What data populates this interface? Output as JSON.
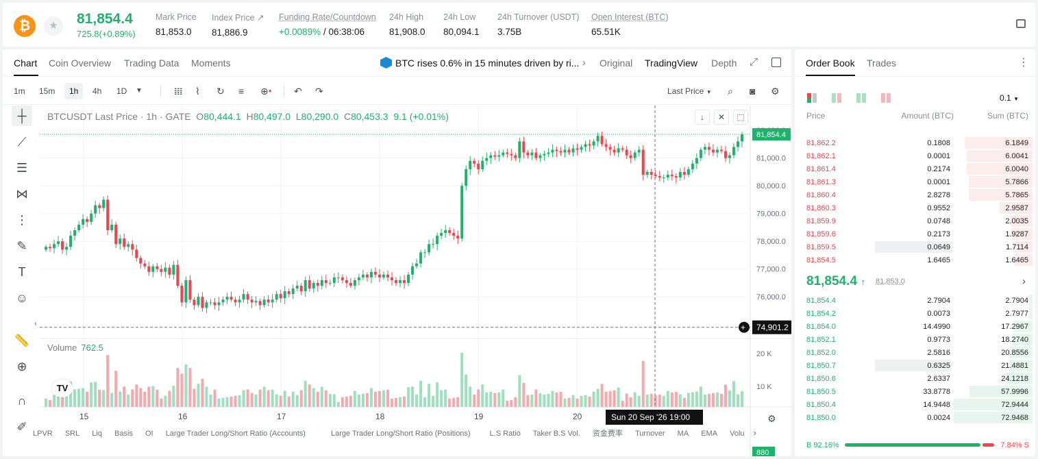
{
  "ticker": {
    "last_price": "81,854.4",
    "change": "725.8(+0.89%)",
    "stats": [
      {
        "label": "Mark Price",
        "value": "81,853.0",
        "color": "default"
      },
      {
        "label": "Index Price ↗",
        "value": "81,886.9",
        "color": "default"
      },
      {
        "label": "Funding Rate/Countdown",
        "value_green": "+0.0089%",
        "value": " / 06:38:06",
        "color": "mixed"
      },
      {
        "label": "24h High",
        "value": "81,908.0",
        "color": "default"
      },
      {
        "label": "24h Low",
        "value": "80,094.1",
        "color": "default"
      },
      {
        "label": "24h Turnover (USDT)",
        "value": "3.75B",
        "color": "default"
      },
      {
        "label": "Open Interest (BTC)",
        "value": "65.51K",
        "color": "default"
      }
    ],
    "logo_icon": "bitcoin-icon"
  },
  "chart_tabs": {
    "items": [
      "Chart",
      "Coin Overview",
      "Trading Data",
      "Moments"
    ],
    "active": "Chart",
    "news": "BTC rises 0.6% in 15 minutes driven by ri...",
    "view_modes": [
      "Original",
      "TradingView",
      "Depth"
    ],
    "active_view": "TradingView"
  },
  "toolbar": {
    "timeframes": [
      "1m",
      "15m",
      "1h",
      "4h",
      "1D"
    ],
    "active_timeframe": "1h",
    "price_type": "Last Price"
  },
  "chart_legend": {
    "symbol": "BTCUSDT Last Price · 1h · GATE",
    "o": "80,444.1",
    "h": "80,497.0",
    "l": "80,290.0",
    "c": "80,453.3",
    "chg": "9.1 (+0.01%)",
    "volume_label": "Volume",
    "volume_value": "762.5"
  },
  "chart_data": {
    "type": "candlestick",
    "x_labels": [
      "15",
      "16",
      "17",
      "18",
      "19",
      "20"
    ],
    "y_ticks": [
      "82,000.0",
      "81,000.0",
      "80,000.0",
      "79,000.0",
      "78,000.0",
      "77,000.0",
      "76,000.0"
    ],
    "last_price_tag": "81,854.4",
    "crosshair_price": "74,901.2",
    "crosshair_time": "Sun 20 Sep '26   19:00",
    "volume_ticks": [
      "20 K",
      "10 K"
    ],
    "volume_tag": "880",
    "series_close": [
      77800,
      77750,
      77900,
      78000,
      77700,
      77800,
      78200,
      78400,
      78600,
      78800,
      78700,
      79000,
      79300,
      79200,
      79500,
      78400,
      78600,
      77900,
      78100,
      77800,
      77900,
      77700,
      77400,
      77200,
      77100,
      76900,
      77100,
      77000,
      76900,
      77050,
      76800,
      77150,
      76400,
      75800,
      76600,
      75900,
      75700,
      76000,
      75600,
      75800,
      75800,
      75700,
      75800,
      75900,
      76000,
      75900,
      75800,
      75900,
      76100,
      75900,
      75800,
      75850,
      75700,
      75900,
      75800,
      75900,
      76100,
      75950,
      76200,
      76100,
      76300,
      76400,
      76200,
      76600,
      76300,
      76500,
      76400,
      76600,
      76500,
      76500,
      76700,
      76700,
      76600,
      76500,
      76400,
      76600,
      76700,
      76800,
      76700,
      76900,
      76800,
      76700,
      76800,
      76700,
      76600,
      76500,
      76600,
      76500,
      76800,
      77100,
      77200,
      77600,
      77600,
      77900,
      77900,
      78200,
      78300,
      78400,
      78300,
      78200,
      78100,
      80000,
      80600,
      80900,
      80800,
      80600,
      80900,
      81000,
      81100,
      81050,
      81100,
      81200,
      81150,
      81100,
      81000,
      81600,
      81200,
      81100,
      81200,
      81000,
      81100,
      81150,
      81200,
      81300,
      81250,
      81200,
      81300,
      81200,
      81350,
      81300,
      81400,
      81500,
      81450,
      81600,
      81800,
      81500,
      81400,
      81300,
      81200,
      81350,
      81300,
      81100,
      81000,
      81200,
      81300,
      80400,
      80500,
      80400,
      80350,
      80300,
      80300,
      80400,
      80350,
      80300,
      80500,
      80400,
      80600,
      80800,
      81000,
      81300,
      81400,
      81300,
      81200,
      81300,
      81250,
      81000,
      81100,
      81400,
      81600,
      81854
    ],
    "ylim": [
      74500,
      82400
    ]
  },
  "drawing_tools": [
    "crosshair-icon",
    "trendline-icon",
    "fib-icon",
    "pattern-icon",
    "projection-icon",
    "brush-icon",
    "text-icon",
    "emoji-icon",
    "ruler-icon",
    "zoom-in-icon",
    "magnet-icon",
    "pencil-icon"
  ],
  "indicators": [
    "LPVR",
    "SRL",
    "Liq",
    "Basis",
    "OI",
    "Large Trader Long/Short Ratio (Accounts)",
    "Large Trader Long/Short Ratio (Positions)",
    "L.S Ratio",
    "Taker B.S Vol.",
    "资金费率",
    "Turnover",
    "MA",
    "EMA",
    "Volu"
  ],
  "order_book": {
    "tabs": [
      "Order Book",
      "Trades"
    ],
    "step": "0.1",
    "headers": {
      "price": "Price",
      "amount": "Amount (BTC)",
      "sum": "Sum (BTC)"
    },
    "asks": [
      {
        "price": "81,862.2",
        "amount": "0.1808",
        "sum": "6.1849",
        "depth": 0.85
      },
      {
        "price": "81,862.1",
        "amount": "0.0001",
        "sum": "6.0041",
        "depth": 0.83
      },
      {
        "price": "81,861.4",
        "amount": "0.2174",
        "sum": "6.0040",
        "depth": 0.83
      },
      {
        "price": "81,861.3",
        "amount": "0.0001",
        "sum": "5.7866",
        "depth": 0.8
      },
      {
        "price": "81,860.4",
        "amount": "2.8278",
        "sum": "5.7865",
        "depth": 0.8
      },
      {
        "price": "81,860.3",
        "amount": "0.9552",
        "sum": "2.9587",
        "depth": 0.41
      },
      {
        "price": "81,859.9",
        "amount": "0.0748",
        "sum": "2.0035",
        "depth": 0.28
      },
      {
        "price": "81,859.6",
        "amount": "0.2173",
        "sum": "1.9287",
        "depth": 0.27
      },
      {
        "price": "81,859.5",
        "amount": "0.0649",
        "sum": "1.7114",
        "depth": 0.24
      },
      {
        "price": "81,854.5",
        "amount": "1.6465",
        "sum": "1.6465",
        "depth": 0.23
      }
    ],
    "mid_price": "81,854.4",
    "mark_price": "81,853.0",
    "bids": [
      {
        "price": "81,854.4",
        "amount": "2.7904",
        "sum": "2.7904",
        "depth": 0.04
      },
      {
        "price": "81,854.2",
        "amount": "0.0073",
        "sum": "2.7977",
        "depth": 0.04
      },
      {
        "price": "81,854.0",
        "amount": "14.4990",
        "sum": "17.2967",
        "depth": 0.24
      },
      {
        "price": "81,852.1",
        "amount": "0.9773",
        "sum": "18.2740",
        "depth": 0.25
      },
      {
        "price": "81,852.0",
        "amount": "2.5816",
        "sum": "20.8556",
        "depth": 0.29
      },
      {
        "price": "81,850.7",
        "amount": "0.6325",
        "sum": "21.4881",
        "depth": 0.29
      },
      {
        "price": "81,850.6",
        "amount": "2.6337",
        "sum": "24.1218",
        "depth": 0.33
      },
      {
        "price": "81,850.5",
        "amount": "33.8778",
        "sum": "57.9996",
        "depth": 0.79
      },
      {
        "price": "81,850.4",
        "amount": "14.9448",
        "sum": "72.9444",
        "depth": 0.99
      },
      {
        "price": "81,850.0",
        "amount": "0.0024",
        "sum": "72.9468",
        "depth": 0.99
      }
    ],
    "buy_ratio": "B 92.16%",
    "sell_ratio": "7.84% S",
    "buy_fraction": 0.9216
  },
  "colors": {
    "up": "#20b26c",
    "down": "#ef454a",
    "brand": "#f7931a"
  }
}
